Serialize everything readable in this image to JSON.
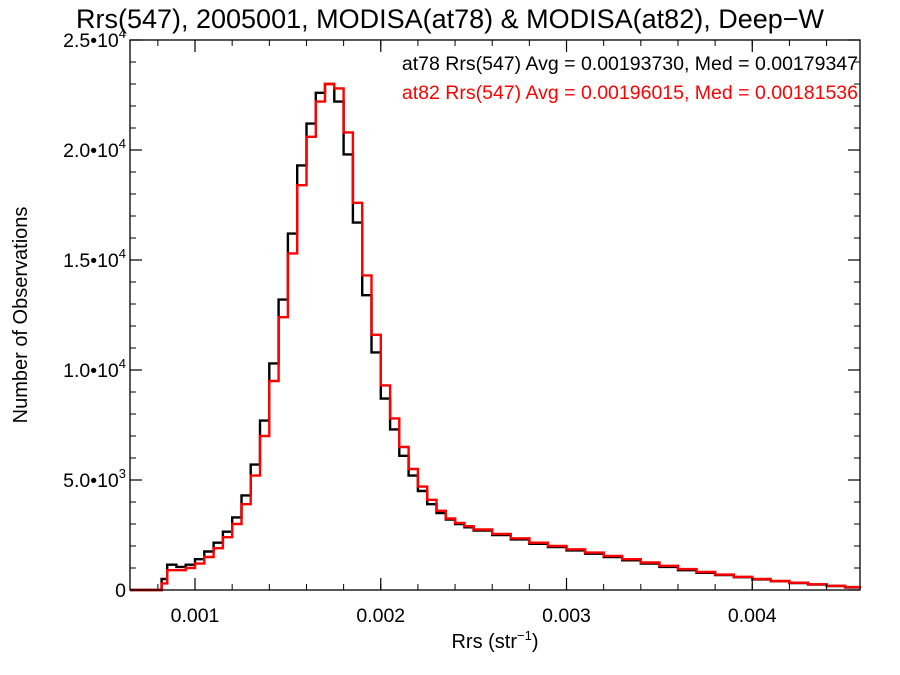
{
  "chart_data": {
    "type": "line",
    "title": "Rrs(547), 2005001, MODISA(at78) & MODISA(at82), Deep−W",
    "xlabel": "Rrs (str",
    "xlabel_sup": "−1",
    "xlabel_close": ")",
    "ylabel": "Number of Observations",
    "xlim": [
      0.00065,
      0.00458
    ],
    "ylim": [
      0,
      25000
    ],
    "x_ticks": [
      {
        "value": 0.001,
        "label": "0.001"
      },
      {
        "value": 0.002,
        "label": "0.002"
      },
      {
        "value": 0.003,
        "label": "0.003"
      },
      {
        "value": 0.004,
        "label": "0.004"
      }
    ],
    "y_ticks": [
      {
        "value": 0,
        "mant": "0",
        "exp": ""
      },
      {
        "value": 5000,
        "mant": "5.0•10",
        "exp": "3"
      },
      {
        "value": 10000,
        "mant": "1.0•10",
        "exp": "4"
      },
      {
        "value": 15000,
        "mant": "1.5•10",
        "exp": "4"
      },
      {
        "value": 20000,
        "mant": "2.0•10",
        "exp": "4"
      },
      {
        "value": 25000,
        "mant": "2.5•10",
        "exp": "4"
      }
    ],
    "grid": false,
    "annotations": [
      {
        "text": "at78 Rrs(547) Avg = 0.00193730, Med = 0.00179347",
        "color": "#000000"
      },
      {
        "text": "at82 Rrs(547) Avg = 0.00196015, Med = 0.00181536",
        "color": "#ff0000"
      }
    ],
    "series": [
      {
        "color": "#000000",
        "style": "step",
        "x": [
          0.00065,
          0.0008,
          0.00082,
          0.00085,
          0.0009,
          0.00095,
          0.001,
          0.00105,
          0.0011,
          0.00115,
          0.0012,
          0.00125,
          0.0013,
          0.00135,
          0.0014,
          0.00145,
          0.0015,
          0.00155,
          0.0016,
          0.00165,
          0.0017,
          0.00175,
          0.0018,
          0.00185,
          0.0019,
          0.00195,
          0.002,
          0.00205,
          0.0021,
          0.00215,
          0.0022,
          0.00225,
          0.0023,
          0.00235,
          0.0024,
          0.00245,
          0.0025,
          0.0026,
          0.0027,
          0.0028,
          0.0029,
          0.003,
          0.0031,
          0.0032,
          0.0033,
          0.0034,
          0.0035,
          0.0036,
          0.0037,
          0.0038,
          0.0039,
          0.004,
          0.0041,
          0.0042,
          0.0043,
          0.0044,
          0.0045,
          0.00458
        ],
        "y": [
          0,
          0,
          500,
          1150,
          1050,
          1150,
          1400,
          1750,
          2150,
          2650,
          3300,
          4300,
          5700,
          7700,
          10300,
          13200,
          16200,
          19300,
          21200,
          22600,
          23000,
          22200,
          19800,
          16700,
          13400,
          10800,
          8700,
          7300,
          6100,
          5200,
          4500,
          3900,
          3500,
          3200,
          3000,
          2850,
          2700,
          2500,
          2300,
          2100,
          1950,
          1800,
          1650,
          1500,
          1350,
          1200,
          1050,
          900,
          780,
          680,
          580,
          480,
          400,
          320,
          250,
          180,
          120,
          80
        ]
      },
      {
        "color": "#ff0000",
        "style": "step",
        "x": [
          0.00065,
          0.0008,
          0.00082,
          0.00085,
          0.0009,
          0.00095,
          0.001,
          0.00105,
          0.0011,
          0.00115,
          0.0012,
          0.00125,
          0.0013,
          0.00135,
          0.0014,
          0.00145,
          0.0015,
          0.00155,
          0.0016,
          0.00165,
          0.0017,
          0.00175,
          0.0018,
          0.00185,
          0.0019,
          0.00195,
          0.002,
          0.00205,
          0.0021,
          0.00215,
          0.0022,
          0.00225,
          0.0023,
          0.00235,
          0.0024,
          0.00245,
          0.0025,
          0.0026,
          0.0027,
          0.0028,
          0.0029,
          0.003,
          0.0031,
          0.0032,
          0.0033,
          0.0034,
          0.0035,
          0.0036,
          0.0037,
          0.0038,
          0.0039,
          0.004,
          0.0041,
          0.0042,
          0.0043,
          0.0044,
          0.0045,
          0.00458
        ],
        "y": [
          0,
          0,
          300,
          900,
          900,
          1000,
          1200,
          1500,
          1900,
          2400,
          3000,
          3900,
          5200,
          7000,
          9500,
          12400,
          15300,
          18400,
          20600,
          22200,
          23000,
          22800,
          20800,
          17600,
          14300,
          11600,
          9300,
          7800,
          6500,
          5500,
          4700,
          4100,
          3600,
          3250,
          3050,
          2900,
          2750,
          2550,
          2350,
          2150,
          2000,
          1850,
          1700,
          1550,
          1400,
          1250,
          1100,
          950,
          820,
          700,
          600,
          500,
          410,
          330,
          260,
          190,
          130,
          90
        ]
      }
    ]
  }
}
